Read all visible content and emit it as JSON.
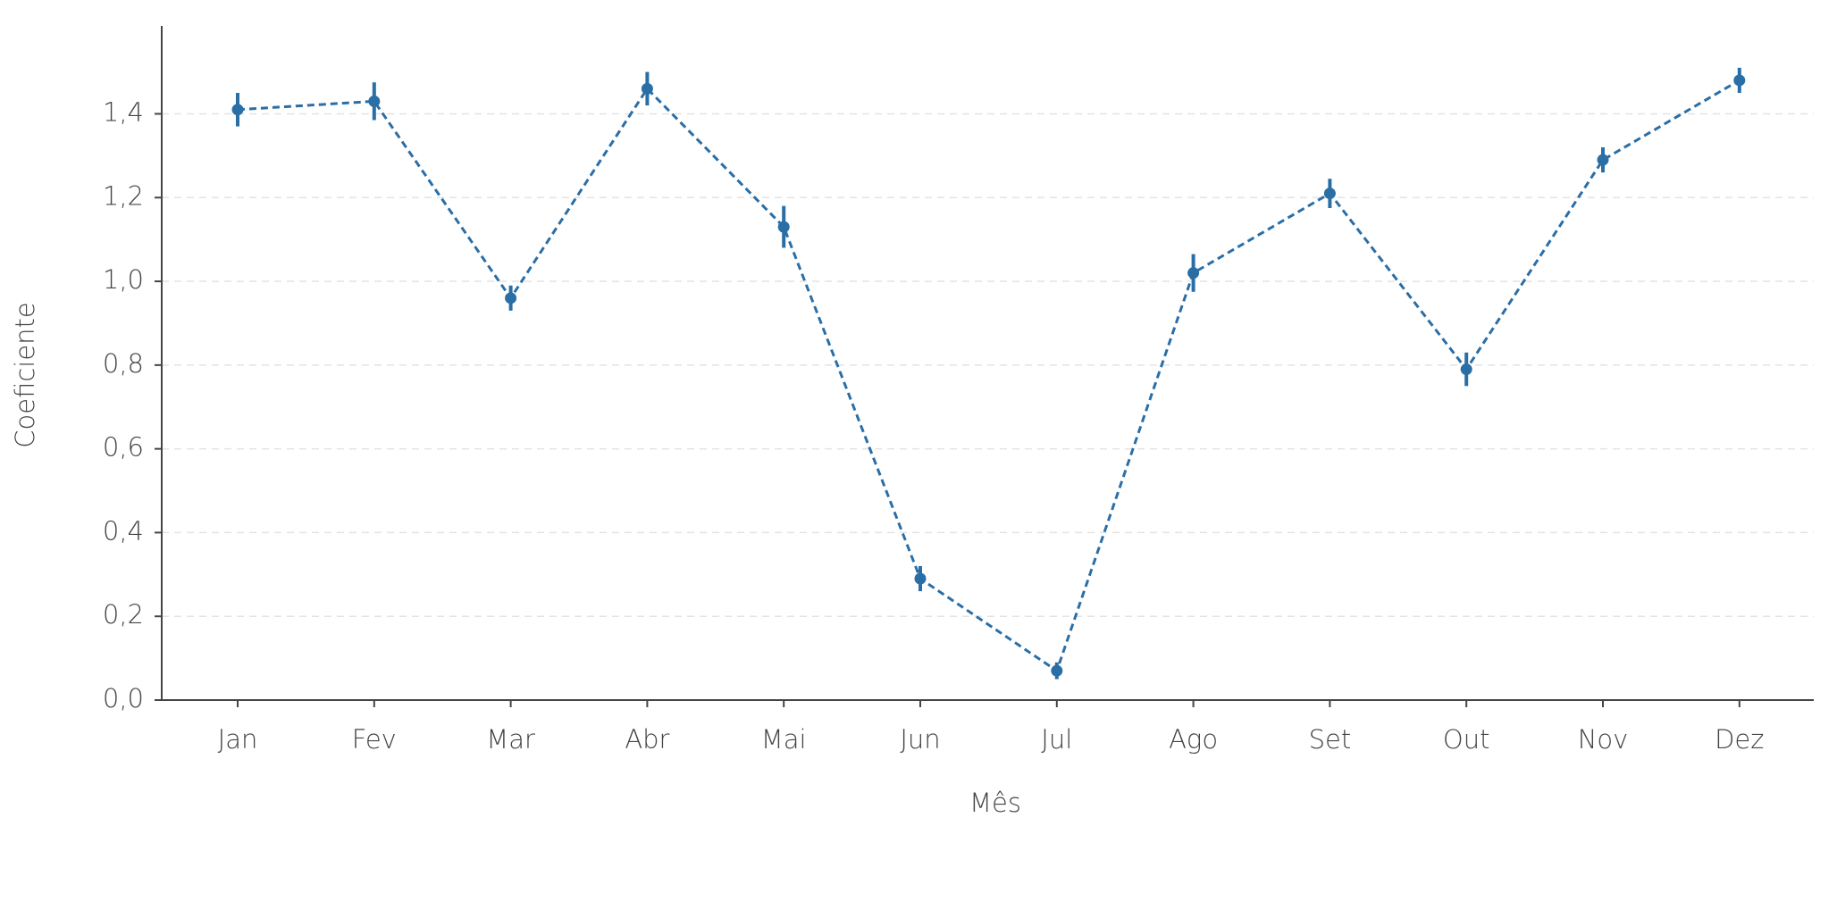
{
  "chart_data": {
    "type": "line",
    "x_label": "Mês",
    "y_label": "Coeficiente",
    "categories": [
      "Jan",
      "Fev",
      "Mar",
      "Abr",
      "Mai",
      "Jun",
      "Jul",
      "Ago",
      "Set",
      "Out",
      "Nov",
      "Dez"
    ],
    "series": [
      {
        "color": "#2a6ea6",
        "values": [
          1.41,
          1.43,
          0.96,
          1.46,
          1.13,
          0.29,
          0.07,
          1.02,
          1.21,
          0.79,
          1.29,
          1.48
        ],
        "errors": [
          0.04,
          0.045,
          0.03,
          0.04,
          0.05,
          0.03,
          0.02,
          0.045,
          0.035,
          0.04,
          0.03,
          0.03
        ]
      }
    ],
    "ylim": [
      0,
      1.61
    ],
    "yticks": [
      {
        "value": 0,
        "label": "0,0"
      },
      {
        "value": 0.2,
        "label": "0,2"
      },
      {
        "value": 0.4,
        "label": "0,4"
      },
      {
        "value": 0.6,
        "label": "0,6"
      },
      {
        "value": 0.8,
        "label": "0,8"
      },
      {
        "value": 1.0,
        "label": "1,0"
      },
      {
        "value": 1.2,
        "label": "1,2"
      },
      {
        "value": 1.4,
        "label": "1,4"
      }
    ],
    "grid": true,
    "line_style": "dashed"
  }
}
